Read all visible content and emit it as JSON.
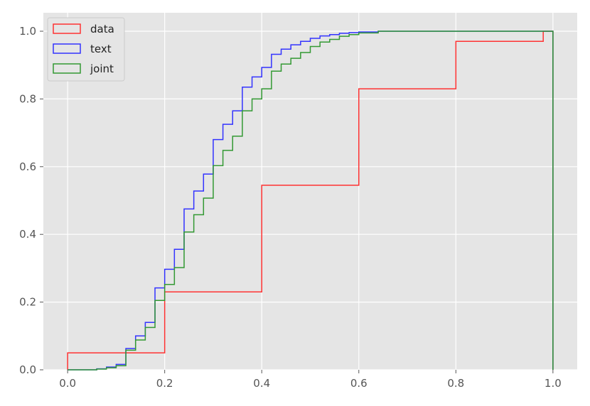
{
  "chart_data": {
    "type": "line",
    "style": "ecdf-step",
    "title": "",
    "xlabel": "",
    "ylabel": "",
    "xlim": [
      -0.05,
      1.05
    ],
    "ylim": [
      0.0,
      1.0
    ],
    "grid": true,
    "background": "#e5e5e5",
    "legend_position": "top-left",
    "x_ticks": [
      "0.0",
      "0.2",
      "0.4",
      "0.6",
      "0.8",
      "1.0"
    ],
    "y_ticks": [
      "0.0",
      "0.2",
      "0.4",
      "0.6",
      "0.8",
      "1.0"
    ],
    "series": [
      {
        "name": "data",
        "color": "#ff3333",
        "points": [
          [
            0.0,
            0.0
          ],
          [
            0.0,
            0.05
          ],
          [
            0.2,
            0.05
          ],
          [
            0.2,
            0.23
          ],
          [
            0.4,
            0.23
          ],
          [
            0.4,
            0.545
          ],
          [
            0.6,
            0.545
          ],
          [
            0.6,
            0.83
          ],
          [
            0.8,
            0.83
          ],
          [
            0.8,
            0.97
          ],
          [
            0.98,
            0.97
          ],
          [
            0.98,
            1.0
          ],
          [
            1.0,
            1.0
          ],
          [
            1.0,
            0.0
          ]
        ]
      },
      {
        "name": "text",
        "color": "#3333ff",
        "points": [
          [
            0.0,
            0.0
          ],
          [
            0.06,
            0.0
          ],
          [
            0.06,
            0.003
          ],
          [
            0.08,
            0.003
          ],
          [
            0.08,
            0.008
          ],
          [
            0.1,
            0.008
          ],
          [
            0.1,
            0.016
          ],
          [
            0.12,
            0.016
          ],
          [
            0.12,
            0.063
          ],
          [
            0.14,
            0.063
          ],
          [
            0.14,
            0.1
          ],
          [
            0.16,
            0.1
          ],
          [
            0.16,
            0.14
          ],
          [
            0.18,
            0.14
          ],
          [
            0.18,
            0.242
          ],
          [
            0.2,
            0.242
          ],
          [
            0.2,
            0.297
          ],
          [
            0.22,
            0.297
          ],
          [
            0.22,
            0.356
          ],
          [
            0.24,
            0.356
          ],
          [
            0.24,
            0.475
          ],
          [
            0.26,
            0.475
          ],
          [
            0.26,
            0.528
          ],
          [
            0.28,
            0.528
          ],
          [
            0.28,
            0.578
          ],
          [
            0.3,
            0.578
          ],
          [
            0.3,
            0.68
          ],
          [
            0.32,
            0.68
          ],
          [
            0.32,
            0.725
          ],
          [
            0.34,
            0.725
          ],
          [
            0.34,
            0.765
          ],
          [
            0.36,
            0.765
          ],
          [
            0.36,
            0.835
          ],
          [
            0.38,
            0.835
          ],
          [
            0.38,
            0.865
          ],
          [
            0.4,
            0.865
          ],
          [
            0.4,
            0.893
          ],
          [
            0.42,
            0.893
          ],
          [
            0.42,
            0.932
          ],
          [
            0.44,
            0.932
          ],
          [
            0.44,
            0.947
          ],
          [
            0.46,
            0.947
          ],
          [
            0.46,
            0.96
          ],
          [
            0.48,
            0.96
          ],
          [
            0.48,
            0.97
          ],
          [
            0.5,
            0.97
          ],
          [
            0.5,
            0.979
          ],
          [
            0.52,
            0.979
          ],
          [
            0.52,
            0.986
          ],
          [
            0.54,
            0.986
          ],
          [
            0.54,
            0.99
          ],
          [
            0.56,
            0.99
          ],
          [
            0.56,
            0.994
          ],
          [
            0.58,
            0.994
          ],
          [
            0.58,
            0.996
          ],
          [
            0.6,
            0.996
          ],
          [
            0.6,
            0.998
          ],
          [
            0.64,
            0.998
          ],
          [
            0.64,
            1.0
          ],
          [
            1.0,
            1.0
          ],
          [
            1.0,
            0.0
          ]
        ]
      },
      {
        "name": "joint",
        "color": "#339933",
        "points": [
          [
            0.0,
            0.0
          ],
          [
            0.06,
            0.0
          ],
          [
            0.06,
            0.002
          ],
          [
            0.08,
            0.002
          ],
          [
            0.08,
            0.006
          ],
          [
            0.1,
            0.006
          ],
          [
            0.1,
            0.012
          ],
          [
            0.12,
            0.012
          ],
          [
            0.12,
            0.058
          ],
          [
            0.14,
            0.058
          ],
          [
            0.14,
            0.088
          ],
          [
            0.16,
            0.088
          ],
          [
            0.16,
            0.125
          ],
          [
            0.18,
            0.125
          ],
          [
            0.18,
            0.205
          ],
          [
            0.2,
            0.205
          ],
          [
            0.2,
            0.252
          ],
          [
            0.22,
            0.252
          ],
          [
            0.22,
            0.302
          ],
          [
            0.24,
            0.302
          ],
          [
            0.24,
            0.407
          ],
          [
            0.26,
            0.407
          ],
          [
            0.26,
            0.458
          ],
          [
            0.28,
            0.458
          ],
          [
            0.28,
            0.507
          ],
          [
            0.3,
            0.507
          ],
          [
            0.3,
            0.603
          ],
          [
            0.32,
            0.603
          ],
          [
            0.32,
            0.648
          ],
          [
            0.34,
            0.648
          ],
          [
            0.34,
            0.69
          ],
          [
            0.36,
            0.69
          ],
          [
            0.36,
            0.765
          ],
          [
            0.38,
            0.765
          ],
          [
            0.38,
            0.8
          ],
          [
            0.4,
            0.8
          ],
          [
            0.4,
            0.83
          ],
          [
            0.42,
            0.83
          ],
          [
            0.42,
            0.882
          ],
          [
            0.44,
            0.882
          ],
          [
            0.44,
            0.903
          ],
          [
            0.46,
            0.903
          ],
          [
            0.46,
            0.92
          ],
          [
            0.48,
            0.92
          ],
          [
            0.48,
            0.937
          ],
          [
            0.5,
            0.937
          ],
          [
            0.5,
            0.955
          ],
          [
            0.52,
            0.955
          ],
          [
            0.52,
            0.968
          ],
          [
            0.54,
            0.968
          ],
          [
            0.54,
            0.976
          ],
          [
            0.56,
            0.976
          ],
          [
            0.56,
            0.985
          ],
          [
            0.58,
            0.985
          ],
          [
            0.58,
            0.99
          ],
          [
            0.6,
            0.99
          ],
          [
            0.6,
            0.995
          ],
          [
            0.64,
            0.995
          ],
          [
            0.64,
            1.0
          ],
          [
            1.0,
            1.0
          ],
          [
            1.0,
            0.0
          ]
        ]
      }
    ]
  }
}
